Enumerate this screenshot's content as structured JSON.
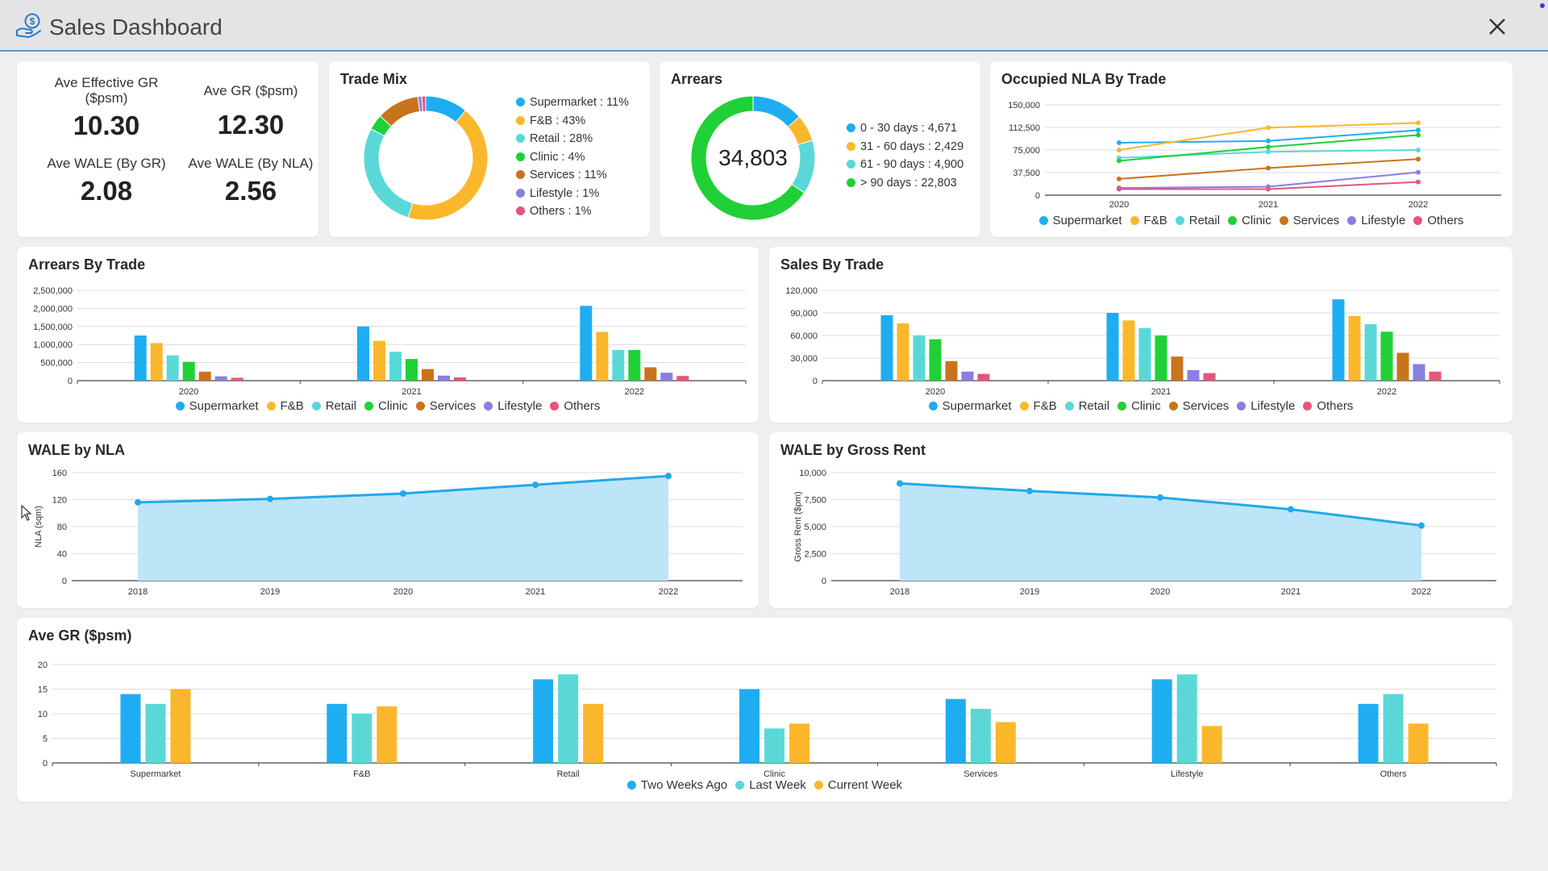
{
  "window": {
    "title": "Sales Dashboard"
  },
  "icons": {
    "app": "money-hand-icon",
    "close": "close-icon",
    "cursor": "mouse-pointer-icon"
  },
  "colors": {
    "supermarket": "#1fadf2",
    "fnb": "#fbb72c",
    "retail": "#5ad8d8",
    "clinic": "#1fd136",
    "services": "#c8741c",
    "lifestyle": "#8a7ee3",
    "others": "#e6557a",
    "area_fill": "#bde5f8",
    "area_line": "#23a8ea"
  },
  "kpis": [
    {
      "label": "Ave Effective GR ($psm)",
      "value": "10.30"
    },
    {
      "label": "Ave GR ($psm)",
      "value": "12.30"
    },
    {
      "label": "Ave WALE (By GR)",
      "value": "2.08"
    },
    {
      "label": "Ave WALE (By NLA)",
      "value": "2.56"
    }
  ],
  "trade_mix": {
    "title": "Trade Mix",
    "legend": [
      "Supermarket : 11%",
      "F&B : 43%",
      "Retail : 28%",
      "Clinic : 4%",
      "Services : 11%",
      "Lifestyle : 1%",
      "Others : 1%"
    ],
    "chart_data": {
      "type": "pie",
      "labels": [
        "Supermarket",
        "F&B",
        "Retail",
        "Clinic",
        "Services",
        "Lifestyle",
        "Others"
      ],
      "values": [
        11,
        43,
        28,
        4,
        11,
        1,
        1
      ]
    }
  },
  "arrears": {
    "title": "Arrears",
    "total": "34,803",
    "legend": [
      "0 - 30 days : 4,671",
      "31 - 60 days : 2,429",
      "61 - 90 days : 4,900",
      "> 90 days : 22,803"
    ],
    "chart_data": {
      "type": "pie",
      "labels": [
        "0 - 30 days",
        "31 - 60 days",
        "61 - 90 days",
        "> 90 days"
      ],
      "values": [
        4671,
        2429,
        4900,
        22803
      ]
    }
  },
  "occupied_nla": {
    "title": "Occupied NLA By Trade",
    "legend": [
      "Supermarket",
      "F&B",
      "Retail",
      "Clinic",
      "Services",
      "Lifestyle",
      "Others"
    ],
    "chart_data": {
      "type": "line",
      "x": [
        "2020",
        "2021",
        "2022"
      ],
      "yticks": [
        "150,000",
        "112,500",
        "75,000",
        "37,500",
        "0"
      ],
      "ylim": [
        0,
        150000
      ],
      "series": [
        {
          "name": "Supermarket",
          "values": [
            87000,
            90000,
            108000
          ]
        },
        {
          "name": "F&B",
          "values": [
            75000,
            112000,
            120000
          ]
        },
        {
          "name": "Retail",
          "values": [
            62000,
            72000,
            75000
          ]
        },
        {
          "name": "Clinic",
          "values": [
            57000,
            80000,
            100000
          ]
        },
        {
          "name": "Services",
          "values": [
            27000,
            45000,
            60000
          ]
        },
        {
          "name": "Lifestyle",
          "values": [
            12000,
            14000,
            38000
          ]
        },
        {
          "name": "Others",
          "values": [
            10000,
            10000,
            22000
          ]
        }
      ]
    }
  },
  "arrears_by_trade": {
    "title": "Arrears By Trade",
    "legend": [
      "Supermarket",
      "F&B",
      "Retail",
      "Clinic",
      "Services",
      "Lifestyle",
      "Others"
    ],
    "chart_data": {
      "type": "bar",
      "categories": [
        "2020",
        "2021",
        "2022"
      ],
      "yticks": [
        "2,500,000",
        "2,000,000",
        "1,500,000",
        "1,000,000",
        "500,000",
        "0"
      ],
      "ylim": [
        0,
        2500000
      ],
      "series": [
        {
          "name": "Supermarket",
          "values": [
            1250000,
            1500000,
            2070000
          ]
        },
        {
          "name": "F&B",
          "values": [
            1040000,
            1100000,
            1350000
          ]
        },
        {
          "name": "Retail",
          "values": [
            700000,
            800000,
            850000
          ]
        },
        {
          "name": "Clinic",
          "values": [
            520000,
            600000,
            850000
          ]
        },
        {
          "name": "Services",
          "values": [
            250000,
            320000,
            370000
          ]
        },
        {
          "name": "Lifestyle",
          "values": [
            120000,
            140000,
            220000
          ]
        },
        {
          "name": "Others",
          "values": [
            80000,
            90000,
            130000
          ]
        }
      ]
    }
  },
  "sales_by_trade": {
    "title": "Sales By Trade",
    "legend": [
      "Supermarket",
      "F&B",
      "Retail",
      "Clinic",
      "Services",
      "Lifestyle",
      "Others"
    ],
    "chart_data": {
      "type": "bar",
      "categories": [
        "2020",
        "2021",
        "2022"
      ],
      "yticks": [
        "120,000",
        "90,000",
        "60,000",
        "30,000",
        "0"
      ],
      "ylim": [
        0,
        120000
      ],
      "series": [
        {
          "name": "Supermarket",
          "values": [
            87000,
            90000,
            108000
          ]
        },
        {
          "name": "F&B",
          "values": [
            76000,
            80000,
            86000
          ]
        },
        {
          "name": "Retail",
          "values": [
            60000,
            70000,
            75000
          ]
        },
        {
          "name": "Clinic",
          "values": [
            55000,
            60000,
            65000
          ]
        },
        {
          "name": "Services",
          "values": [
            26000,
            32000,
            37000
          ]
        },
        {
          "name": "Lifestyle",
          "values": [
            12000,
            14000,
            22000
          ]
        },
        {
          "name": "Others",
          "values": [
            9000,
            10000,
            12000
          ]
        }
      ]
    }
  },
  "wale_nla": {
    "title": "WALE by NLA",
    "chart_data": {
      "type": "area",
      "x": [
        "2018",
        "2019",
        "2020",
        "2021",
        "2022"
      ],
      "values": [
        116,
        121,
        129,
        142,
        155
      ],
      "ylabel": "NLA (sqm)",
      "yticks": [
        "160",
        "120",
        "80",
        "40",
        "0"
      ],
      "ylim": [
        0,
        160
      ]
    }
  },
  "wale_gr": {
    "title": "WALE by Gross Rent",
    "chart_data": {
      "type": "area",
      "x": [
        "2018",
        "2019",
        "2020",
        "2021",
        "2022"
      ],
      "values": [
        9000,
        8300,
        7700,
        6600,
        5100
      ],
      "ylabel": "Gross Rent ($pm)",
      "yticks": [
        "10,000",
        "7,500",
        "5,000",
        "2,500",
        "0"
      ],
      "ylim": [
        0,
        10000
      ]
    }
  },
  "ave_gr": {
    "title": "Ave GR ($psm)",
    "legend": [
      "Two Weeks Ago",
      "Last Week",
      "Current Week"
    ],
    "chart_data": {
      "type": "bar",
      "categories": [
        "Supermarket",
        "F&B",
        "Retail",
        "Clinic",
        "Services",
        "Lifestyle",
        "Others"
      ],
      "yticks": [
        "20",
        "15",
        "10",
        "5",
        "0"
      ],
      "ylim": [
        0,
        20
      ],
      "series": [
        {
          "name": "Two Weeks Ago",
          "values": [
            14,
            12,
            17,
            15,
            13,
            17,
            12
          ]
        },
        {
          "name": "Last Week",
          "values": [
            12,
            10,
            18,
            7,
            11,
            18,
            14
          ]
        },
        {
          "name": "Current Week",
          "values": [
            15,
            11.5,
            12,
            8,
            8.3,
            7.5,
            8
          ]
        }
      ]
    }
  }
}
